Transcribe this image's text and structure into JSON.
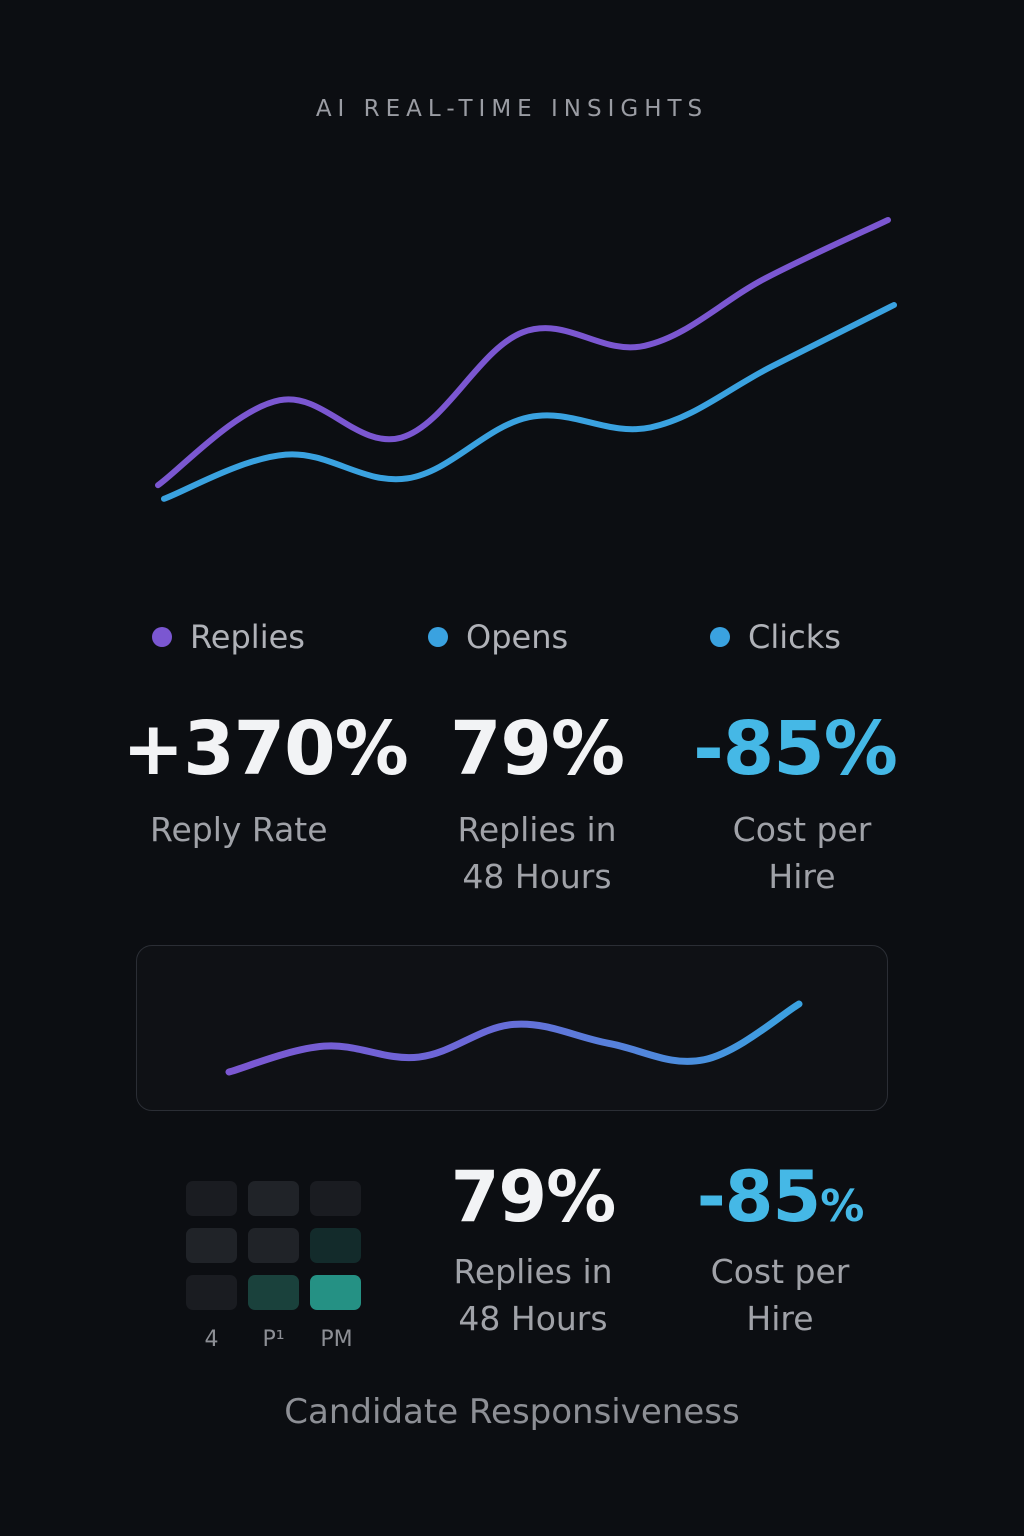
{
  "header": {
    "title": "AI REAL-TIME INSIGHTS"
  },
  "colors": {
    "background": "#0c0e12",
    "replies": "#7b57d1",
    "opens": "#3aa2e0",
    "clicks": "#3aa2e0",
    "accent_negative": "#45b8e6",
    "heat_levels": [
      "#1a1c21",
      "#202328",
      "#132b2b",
      "#1a413c",
      "#259184"
    ]
  },
  "legend": [
    {
      "label": "Replies",
      "color": "#7b57d1"
    },
    {
      "label": "Opens",
      "color": "#3aa2e0"
    },
    {
      "label": "Clicks",
      "color": "#3aa2e0"
    }
  ],
  "stats_top": [
    {
      "value": "+370%",
      "label": "Reply Rate"
    },
    {
      "value": "79%",
      "label": "Replies in\n48 Hours"
    },
    {
      "value": "-85%",
      "label": "Cost per\nHire"
    }
  ],
  "stats_bottom": [
    {
      "value": "79%",
      "label": "Replies in\n48 Hours"
    },
    {
      "value_main": "-85",
      "value_unit": "%",
      "label": "Cost per\nHire"
    }
  ],
  "heatmap": {
    "levels": [
      [
        0.25,
        0.35,
        0.15
      ],
      [
        0.4,
        0.4,
        0.55
      ],
      [
        0.15,
        0.7,
        1.0
      ]
    ],
    "x_labels": [
      "4",
      "P¹",
      "PM"
    ]
  },
  "caption": "Candidate Responsiveness",
  "chart_data": [
    {
      "type": "line",
      "title": "",
      "xlabel": "",
      "ylabel": "",
      "ylim": [
        0,
        100
      ],
      "grid": false,
      "legend": "bottom",
      "x": [
        0,
        1,
        2,
        3,
        4,
        5,
        6
      ],
      "series": [
        {
          "name": "Replies",
          "values": [
            22,
            47,
            36,
            67,
            63,
            83,
            100
          ]
        },
        {
          "name": "Opens",
          "values": [
            18,
            31,
            24,
            42,
            39,
            57,
            75
          ]
        }
      ]
    },
    {
      "type": "line",
      "title": "",
      "xlabel": "",
      "ylabel": "",
      "ylim": [
        0,
        100
      ],
      "grid": false,
      "legend": "none",
      "x": [
        0,
        1,
        2,
        3,
        4,
        5,
        6
      ],
      "series": [
        {
          "values": [
            0,
            38,
            22,
            70,
            42,
            18,
            100
          ]
        }
      ]
    }
  ]
}
